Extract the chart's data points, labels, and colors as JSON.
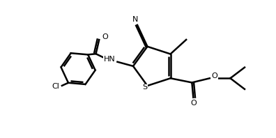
{
  "background_color": "#ffffff",
  "line_color": "#000000",
  "line_width": 1.8,
  "figsize": [
    3.96,
    1.98
  ],
  "dpi": 100,
  "xlim": [
    0,
    9.5
  ],
  "ylim": [
    0,
    4.5
  ]
}
